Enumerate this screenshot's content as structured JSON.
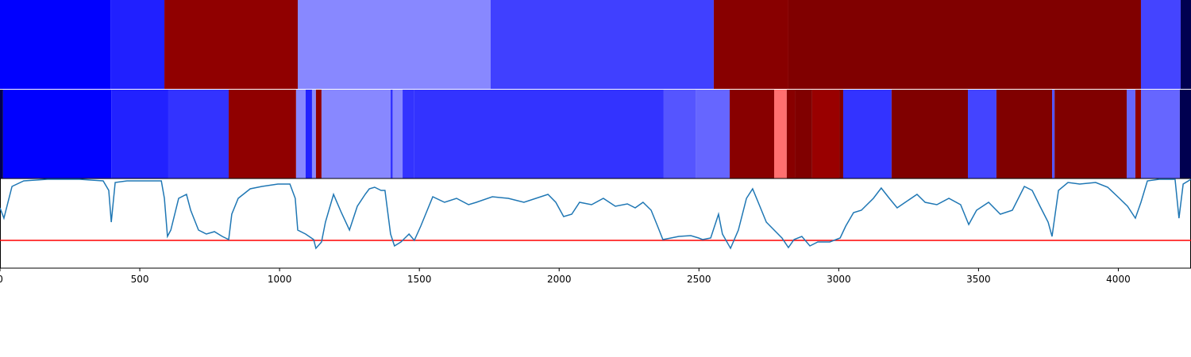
{
  "chart_data": [
    {
      "type": "segments",
      "xlim": [
        0,
        4260
      ],
      "starts": [
        0,
        395,
        588,
        1065,
        1755,
        2553,
        2820,
        4081,
        4223
      ],
      "colors": [
        "#0000ff",
        "#2020ff",
        "#900000",
        "#8888ff",
        "#4040ff",
        "#880000",
        "#800000",
        "#4444ff",
        "#000050"
      ]
    },
    {
      "type": "segments",
      "xlim": [
        0,
        4260
      ],
      "starts": [
        0,
        11,
        398,
        602,
        818,
        1059,
        1093,
        1116,
        1130,
        1150,
        1397,
        1405,
        1440,
        1480,
        2374,
        2488,
        2610,
        2769,
        2814,
        2843,
        2905,
        3002,
        3016,
        3189,
        3462,
        3564,
        3763,
        3772,
        4030,
        4061,
        4081,
        4220
      ],
      "colors": [
        "#000050",
        "#0000ff",
        "#2222ff",
        "#3333ff",
        "#900000",
        "#8888ff",
        "#2222ff",
        "#8888ff",
        "#900000",
        "#8888ff",
        "#3333ff",
        "#8888ff",
        "#3333ff",
        "#3333ff",
        "#5555ff",
        "#6666ff",
        "#880000",
        "#ff7070",
        "#880000",
        "#800000",
        "#990000",
        "#800000",
        "#3333ff",
        "#800000",
        "#4444ff",
        "#800000",
        "#5555ff",
        "#800000",
        "#6666ff",
        "#900000",
        "#6666ff",
        "#000050"
      ]
    },
    {
      "type": "line",
      "xlim": [
        0,
        4260
      ],
      "ylim": [
        0,
        113
      ],
      "xticks": [
        0,
        500,
        1000,
        1500,
        2000,
        2500,
        3000,
        3500,
        4000
      ],
      "threshold": 35,
      "threshold_color": "#ff0000",
      "series": [
        {
          "color": "#1f77b4",
          "x": [
            0,
            14,
            43,
            85,
            170,
            284,
            369,
            389,
            398,
            412,
            454,
            540,
            577,
            588,
            599,
            611,
            639,
            667,
            682,
            710,
            738,
            767,
            795,
            818,
            829,
            852,
            895,
            937,
            994,
            1037,
            1056,
            1065,
            1093,
            1122,
            1130,
            1150,
            1164,
            1193,
            1221,
            1250,
            1278,
            1306,
            1321,
            1340,
            1363,
            1377,
            1386,
            1397,
            1411,
            1434,
            1463,
            1482,
            1505,
            1534,
            1548,
            1590,
            1633,
            1676,
            1704,
            1761,
            1818,
            1874,
            1960,
            1988,
            2016,
            2045,
            2073,
            2116,
            2158,
            2201,
            2244,
            2272,
            2300,
            2329,
            2352,
            2371,
            2400,
            2428,
            2471,
            2499,
            2513,
            2542,
            2570,
            2584,
            2613,
            2641,
            2670,
            2692,
            2712,
            2741,
            2769,
            2797,
            2820,
            2840,
            2868,
            2897,
            2925,
            2968,
            3005,
            3025,
            3053,
            3081,
            3124,
            3152,
            3181,
            3209,
            3238,
            3280,
            3309,
            3351,
            3394,
            3436,
            3465,
            3493,
            3536,
            3578,
            3621,
            3664,
            3692,
            3720,
            3749,
            3763,
            3786,
            3820,
            3862,
            3919,
            3962,
            4004,
            4033,
            4061,
            4081,
            4104,
            4146,
            4203,
            4217,
            4232,
            4260
          ],
          "values": [
            76,
            63,
            103,
            110,
            112,
            112,
            110,
            98,
            58,
            108,
            110,
            110,
            110,
            88,
            40,
            48,
            88,
            93,
            73,
            48,
            43,
            46,
            40,
            36,
            68,
            88,
            100,
            103,
            106,
            106,
            88,
            48,
            43,
            36,
            25,
            33,
            58,
            93,
            70,
            48,
            78,
            93,
            100,
            102,
            98,
            98,
            73,
            43,
            28,
            33,
            43,
            35,
            53,
            78,
            90,
            83,
            88,
            80,
            83,
            90,
            88,
            83,
            93,
            83,
            65,
            68,
            83,
            80,
            88,
            78,
            81,
            76,
            83,
            73,
            53,
            36,
            38,
            40,
            41,
            38,
            36,
            38,
            68,
            43,
            25,
            48,
            88,
            100,
            83,
            58,
            48,
            38,
            26,
            36,
            40,
            28,
            33,
            33,
            38,
            53,
            70,
            73,
            88,
            101,
            88,
            76,
            83,
            93,
            83,
            80,
            88,
            80,
            55,
            73,
            83,
            68,
            73,
            103,
            98,
            78,
            58,
            40,
            98,
            108,
            106,
            108,
            102,
            88,
            78,
            63,
            83,
            110,
            112,
            112,
            63,
            106,
            112
          ]
        }
      ]
    }
  ]
}
